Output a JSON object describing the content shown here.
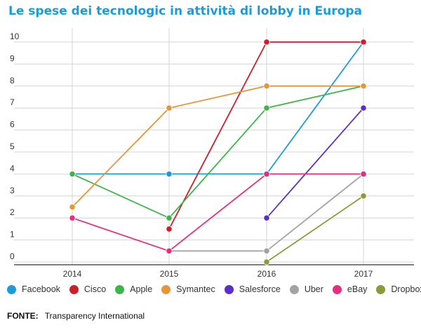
{
  "title": "Le spese dei tecnologic in attività di lobby in Europa",
  "source": {
    "label": "FONTE:",
    "value": "Transparency International"
  },
  "chart_data": {
    "type": "line",
    "title": "Le spese dei tecnologic in attività di lobby in Europa",
    "xlabel": "",
    "ylabel": "",
    "x": [
      "2014",
      "2015",
      "2016",
      "2017"
    ],
    "yticks": [
      "0",
      "1",
      "2",
      "3",
      "4",
      "5",
      "6",
      "7",
      "8",
      "9",
      "10"
    ],
    "ylim": [
      0,
      10
    ],
    "grid": true,
    "legend_position": "bottom",
    "series": [
      {
        "name": "Facebook",
        "color": "#1e9bd7",
        "points": [
          [
            0,
            4
          ],
          [
            1,
            4
          ],
          [
            2,
            4
          ],
          [
            3,
            10
          ]
        ]
      },
      {
        "name": "Cisco",
        "color": "#cc1f2b",
        "points": [
          [
            1,
            1.5
          ],
          [
            2,
            10
          ],
          [
            3,
            10
          ]
        ]
      },
      {
        "name": "Apple",
        "color": "#3db54a",
        "points": [
          [
            0,
            4
          ],
          [
            1,
            2
          ],
          [
            2,
            7
          ],
          [
            3,
            8
          ]
        ]
      },
      {
        "name": "Symantec",
        "color": "#e5963b",
        "points": [
          [
            0,
            2.5
          ],
          [
            1,
            7
          ],
          [
            2,
            8
          ],
          [
            3,
            8
          ]
        ]
      },
      {
        "name": "Salesforce",
        "color": "#5b2fc7",
        "points": [
          [
            2,
            2
          ],
          [
            3,
            7
          ]
        ]
      },
      {
        "name": "Uber",
        "color": "#a3a3a3",
        "points": [
          [
            1,
            0.5
          ],
          [
            2,
            0.5
          ],
          [
            3,
            4
          ]
        ]
      },
      {
        "name": "eBay",
        "color": "#e2307f",
        "points": [
          [
            0,
            2
          ],
          [
            1,
            0.5
          ],
          [
            2,
            4
          ],
          [
            3,
            4
          ]
        ]
      },
      {
        "name": "Dropbox",
        "color": "#8c9a3b",
        "points": [
          [
            2,
            0
          ],
          [
            3,
            3
          ]
        ]
      }
    ]
  }
}
